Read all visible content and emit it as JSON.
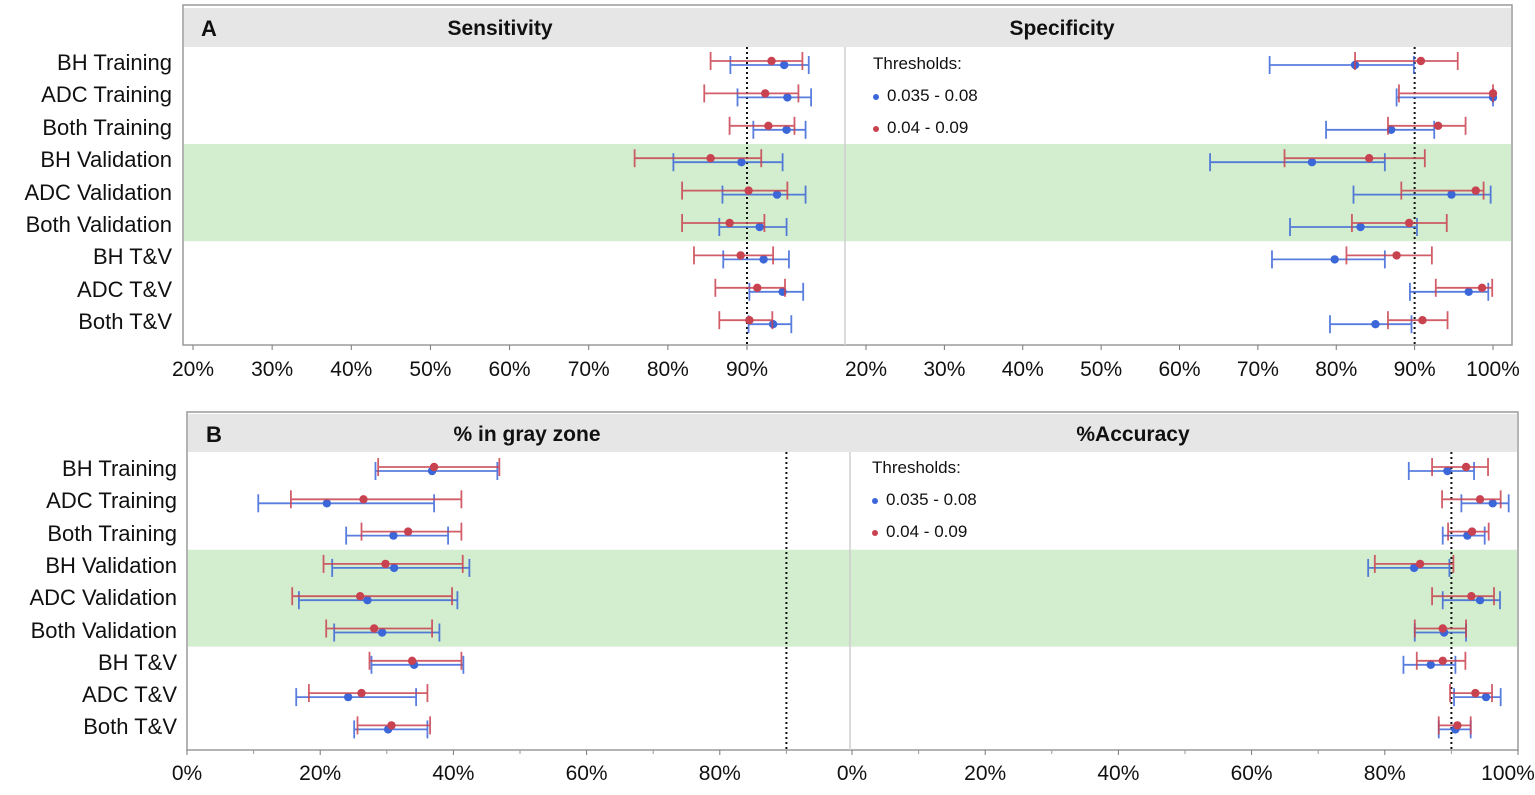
{
  "colors": {
    "series1": "#3b67d9",
    "series2": "#c9424f",
    "band": "#d3edcf",
    "header": "#e6e6e6",
    "reference": "#111111"
  },
  "chart_data": [
    {
      "panel": "A",
      "type": "forest",
      "row_labels": [
        "BH Training",
        "ADC Training",
        "Both Training",
        "BH Validation",
        "ADC Validation",
        "Both Validation",
        "BH T&V",
        "ADC T&V",
        "Both T&V"
      ],
      "highlighted_rows": [
        3,
        4,
        5
      ],
      "legend": {
        "title": "Thresholds:",
        "entries": [
          "0.035  - 0.08",
          "0.04 - 0.09"
        ],
        "placement": "inside-top-left of right plot"
      },
      "plots": [
        {
          "title": "Sensitivity",
          "xlim": [
            18.7,
            101.8
          ],
          "ticks": [
            20,
            30,
            40,
            50,
            60,
            70,
            80,
            90
          ],
          "tick_labels": [
            "20%",
            "30%",
            "40%",
            "50%",
            "60%",
            "70%",
            "80%",
            "90%"
          ],
          "reference_line": 90,
          "series": [
            {
              "name": "0.035  - 0.08",
              "values": [
                [
                  94.7,
                  87.9,
                  97.8
                ],
                [
                  95.1,
                  88.8,
                  98.1
                ],
                [
                  95.0,
                  90.8,
                  97.4
                ],
                [
                  89.3,
                  80.7,
                  94.5
                ],
                [
                  93.8,
                  86.9,
                  97.4
                ],
                [
                  91.6,
                  86.5,
                  95.0
                ],
                [
                  92.1,
                  87.0,
                  95.3
                ],
                [
                  94.5,
                  90.3,
                  97.1
                ],
                [
                  93.3,
                  90.2,
                  95.6
                ]
              ]
            },
            {
              "name": "0.04 - 0.09",
              "values": [
                [
                  93.1,
                  85.4,
                  97.0
                ],
                [
                  92.3,
                  84.6,
                  96.5
                ],
                [
                  92.7,
                  87.8,
                  96.0
                ],
                [
                  85.4,
                  75.8,
                  91.8
                ],
                [
                  90.2,
                  81.8,
                  95.1
                ],
                [
                  87.8,
                  81.8,
                  92.2
                ],
                [
                  89.2,
                  83.3,
                  93.3
                ],
                [
                  91.3,
                  86.0,
                  94.8
                ],
                [
                  90.3,
                  86.5,
                  93.2
                ]
              ]
            }
          ]
        },
        {
          "title": "Specificity",
          "xlim": [
            17.6,
            102.4
          ],
          "ticks": [
            20,
            30,
            40,
            50,
            60,
            70,
            80,
            90,
            100
          ],
          "tick_labels": [
            "20%",
            "30%",
            "40%",
            "50%",
            "60%",
            "70%",
            "80%",
            "90%",
            "100%"
          ],
          "reference_line": 90,
          "series": [
            {
              "name": "0.035  - 0.08",
              "values": [
                [
                  82.4,
                  71.5,
                  89.9
                ],
                [
                  100,
                  87.7,
                  100
                ],
                [
                  87.0,
                  78.7,
                  92.5
                ],
                [
                  76.9,
                  63.9,
                  86.2
                ],
                [
                  94.7,
                  82.2,
                  99.7
                ],
                [
                  83.1,
                  74.1,
                  90.3
                ],
                [
                  79.8,
                  71.8,
                  86.2
                ],
                [
                  96.9,
                  89.4,
                  99.4
                ],
                [
                  85.0,
                  79.2,
                  89.6
                ]
              ]
            },
            {
              "name": "0.04 - 0.09",
              "values": [
                [
                  90.8,
                  82.4,
                  95.5
                ],
                [
                  100,
                  88.0,
                  100
                ],
                [
                  93.0,
                  86.6,
                  96.5
                ],
                [
                  84.2,
                  73.4,
                  91.3
                ],
                [
                  97.8,
                  88.3,
                  98.8
                ],
                [
                  89.3,
                  82.0,
                  94.1
                ],
                [
                  87.7,
                  81.3,
                  92.2
                ],
                [
                  98.6,
                  92.7,
                  99.9
                ],
                [
                  91.0,
                  86.6,
                  94.2
                ]
              ]
            }
          ]
        }
      ]
    },
    {
      "panel": "B",
      "type": "forest",
      "row_labels": [
        "BH Training",
        "ADC Training",
        "Both Training",
        "BH Validation",
        "ADC Validation",
        "Both Validation",
        "BH T&V",
        "ADC T&V",
        "Both T&V"
      ],
      "highlighted_rows": [
        3,
        4,
        5
      ],
      "legend": {
        "title": "Thresholds:",
        "entries": [
          "0.035  - 0.08",
          "0.04 - 0.09"
        ],
        "placement": "inside-top-left of right plot"
      },
      "plots": [
        {
          "title": "% in gray zone",
          "xlim": [
            0,
            99.5
          ],
          "ticks": [
            0,
            20,
            40,
            60,
            80
          ],
          "tick_labels": [
            "0%",
            "20%",
            "40%",
            "60%",
            "80%"
          ],
          "minor_ticks": [
            10,
            30,
            50,
            70,
            90
          ],
          "reference_line": 90,
          "series": [
            {
              "name": "0.035  - 0.08",
              "values": [
                [
                  36.8,
                  28.3,
                  46.6
                ],
                [
                  21.0,
                  10.7,
                  37.1
                ],
                [
                  31.0,
                  23.9,
                  39.2
                ],
                [
                  31.1,
                  21.8,
                  42.4
                ],
                [
                  27.1,
                  16.8,
                  40.6
                ],
                [
                  29.3,
                  22.1,
                  37.9
                ],
                [
                  34.1,
                  27.7,
                  41.5
                ],
                [
                  24.2,
                  16.4,
                  34.4
                ],
                [
                  30.2,
                  25.1,
                  36.1
                ]
              ]
            },
            {
              "name": "0.04 - 0.09",
              "values": [
                [
                  37.1,
                  28.7,
                  46.9
                ],
                [
                  26.5,
                  15.6,
                  41.2
                ],
                [
                  33.2,
                  26.2,
                  41.2
                ],
                [
                  29.8,
                  20.5,
                  41.4
                ],
                [
                  26.0,
                  15.8,
                  39.8
                ],
                [
                  28.1,
                  20.9,
                  36.8
                ],
                [
                  33.8,
                  27.4,
                  41.2
                ],
                [
                  26.2,
                  18.3,
                  36.1
                ],
                [
                  30.7,
                  25.6,
                  36.5
                ]
              ]
            }
          ]
        },
        {
          "title": "%Accuracy",
          "xlim": [
            0,
            100
          ],
          "ticks": [
            0,
            20,
            40,
            60,
            80,
            100
          ],
          "tick_labels": [
            "0%",
            "20%",
            "40%",
            "60%",
            "80%",
            "100%"
          ],
          "minor_ticks": [
            10,
            30,
            50,
            70,
            90
          ],
          "reference_line": 90,
          "series": [
            {
              "name": "0.035  - 0.08",
              "values": [
                [
                  89.4,
                  83.6,
                  93.4
                ],
                [
                  96.2,
                  91.5,
                  98.6
                ],
                [
                  92.4,
                  88.7,
                  95.0
                ],
                [
                  84.4,
                  77.5,
                  89.7
                ],
                [
                  94.3,
                  88.7,
                  97.3
                ],
                [
                  88.9,
                  84.5,
                  92.2
                ],
                [
                  86.9,
                  82.8,
                  90.6
                ],
                [
                  95.2,
                  90.4,
                  97.4
                ],
                [
                  90.6,
                  88.1,
                  92.9
                ]
              ]
            },
            {
              "name": "0.04 - 0.09",
              "values": [
                [
                  92.2,
                  87.1,
                  95.5
                ],
                [
                  94.3,
                  88.6,
                  97.4
                ],
                [
                  93.1,
                  89.5,
                  95.6
                ],
                [
                  85.3,
                  78.5,
                  90.3
                ],
                [
                  93.0,
                  87.1,
                  96.4
                ],
                [
                  88.7,
                  84.5,
                  92.2
                ],
                [
                  88.7,
                  84.8,
                  92.1
                ],
                [
                  93.6,
                  89.8,
                  96.1
                ],
                [
                  90.9,
                  88.1,
                  92.9
                ]
              ]
            }
          ]
        }
      ]
    }
  ]
}
